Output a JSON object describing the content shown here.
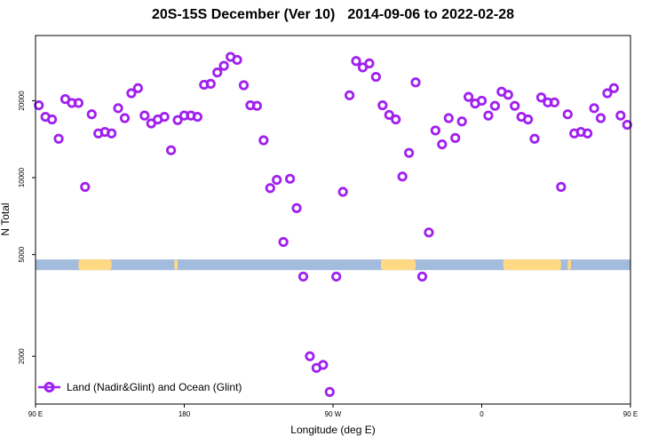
{
  "chart_data": {
    "type": "scatter",
    "title": "20S-15S December (Ver 10)",
    "date_range": "2014-09-06 to 2022-02-28",
    "xlabel": "Longitude (deg E)",
    "ylabel": "N Total",
    "y_scale": "log",
    "xlim": [
      90,
      450
    ],
    "ylim": [
      1300,
      36000
    ],
    "x_ticks": [
      {
        "value": 90,
        "label": "90 E"
      },
      {
        "value": 180,
        "label": "180"
      },
      {
        "value": 270,
        "label": "90 W"
      },
      {
        "value": 360,
        "label": "0"
      },
      {
        "value": 450,
        "label": "90 E"
      },
      {
        "value": 540,
        "label": "180"
      }
    ],
    "y_ticks": [
      {
        "value": 2000,
        "label": "2000"
      },
      {
        "value": 5000,
        "label": "5000"
      },
      {
        "value": 10000,
        "label": "10000"
      },
      {
        "value": 20000,
        "label": "20000"
      }
    ],
    "grid": false,
    "legend": {
      "position": "bottom-left",
      "label": "Land (Nadir&Glint) and Ocean (Glint)"
    },
    "colors": {
      "series": "#a020f0",
      "ocean": "#a3bbdd",
      "land": "#ffd983"
    },
    "surface_band": {
      "y_center": 4560,
      "land_ranges": [
        [
          116,
          136
        ],
        [
          174,
          176
        ],
        [
          299,
          320
        ],
        [
          373,
          408
        ],
        [
          412,
          414
        ],
        [
          510,
          530
        ]
      ]
    },
    "series": [
      {
        "name": "Land (Nadir&Glint) and Ocean (Glint)",
        "x": [
          92,
          96,
          100,
          104,
          108,
          112,
          116,
          120,
          124,
          128,
          132,
          136,
          140,
          144,
          148,
          152,
          156,
          160,
          164,
          168,
          172,
          176,
          180,
          184,
          188,
          192,
          196,
          200,
          204,
          208,
          212,
          216,
          220,
          224,
          228,
          232,
          236,
          240,
          244,
          248,
          252,
          256,
          260,
          264,
          268,
          272,
          276,
          280,
          284,
          288,
          292,
          296,
          300,
          304,
          308,
          312,
          316,
          320,
          324,
          328,
          332,
          336,
          340,
          344,
          348,
          352,
          356,
          360,
          364,
          368,
          372,
          376,
          380,
          384,
          388,
          392,
          396,
          400,
          404,
          408,
          412,
          416,
          420,
          424,
          428,
          432,
          436,
          440,
          444,
          448
        ],
        "y": [
          19200,
          17300,
          16900,
          14200,
          20300,
          19600,
          19600,
          9200,
          17700,
          14900,
          15100,
          14900,
          18700,
          17100,
          21400,
          22400,
          17500,
          16300,
          16900,
          17300,
          12800,
          16800,
          17500,
          17500,
          17300,
          23100,
          23300,
          25800,
          27400,
          29700,
          28900,
          23000,
          19200,
          19100,
          14000,
          9100,
          9800,
          5600,
          9900,
          7600,
          4100,
          2000,
          1800,
          1850,
          1450,
          4100,
          8800,
          21000,
          28600,
          27000,
          28000,
          24800,
          19200,
          17600,
          16900,
          10100,
          12500,
          23600,
          4100,
          6100,
          15300,
          13500,
          17100,
          14300,
          16600,
          20700,
          19500,
          20000,
          17500,
          19100,
          21700,
          21100,
          19100,
          17300,
          16900,
          14200,
          20600,
          19700,
          19700,
          9200,
          17700,
          14900,
          15100,
          14900,
          18700,
          17100,
          21400,
          22400,
          17500,
          16100
        ]
      }
    ]
  }
}
